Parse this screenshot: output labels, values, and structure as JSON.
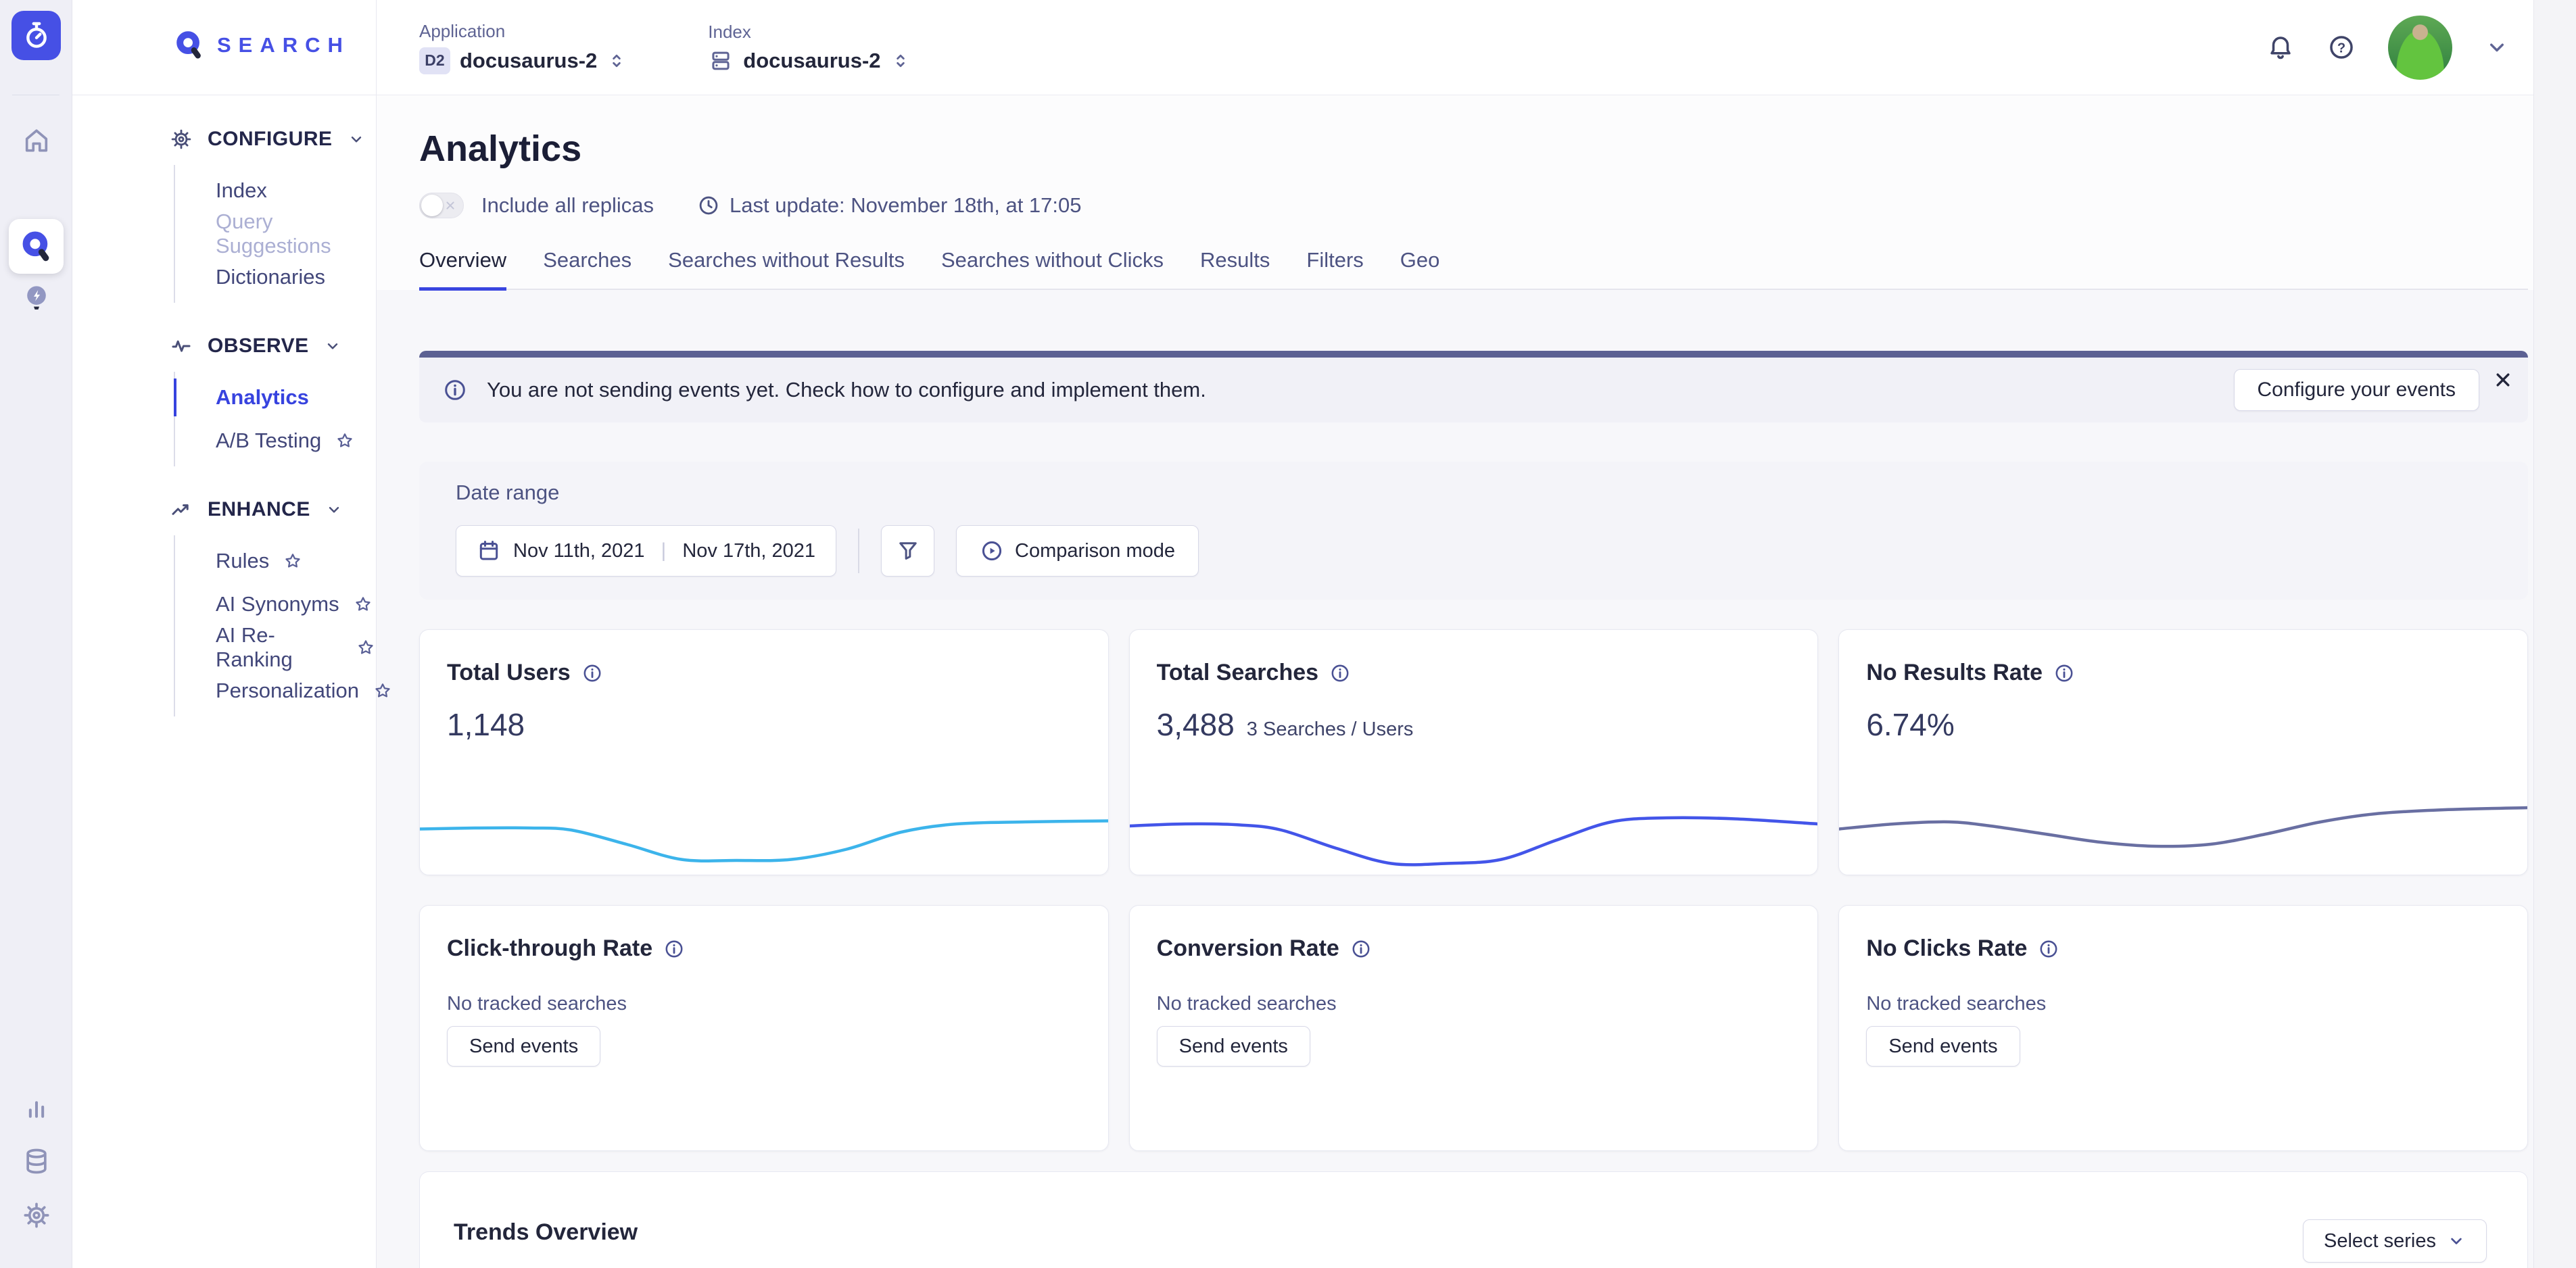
{
  "rail": {
    "app_icon": "timer-icon",
    "home_icon": "home-icon",
    "active_icon": "search-product-icon",
    "recommend_icon": "lightbulb-bolt-icon",
    "bottom_icons": [
      "bar-chart-icon",
      "database-icon",
      "gear-icon"
    ]
  },
  "sidebar": {
    "logo_text": "SEARCH",
    "sections": [
      {
        "label": "CONFIGURE",
        "icon": "gear-icon",
        "items": [
          {
            "label": "Index"
          },
          {
            "label": "Query Suggestions"
          },
          {
            "label": "Dictionaries"
          }
        ]
      },
      {
        "label": "OBSERVE",
        "icon": "pulse-icon",
        "items": [
          {
            "label": "Analytics"
          },
          {
            "label": "A/B Testing"
          }
        ]
      },
      {
        "label": "ENHANCE",
        "icon": "trend-up-icon",
        "items": [
          {
            "label": "Rules"
          },
          {
            "label": "AI Synonyms"
          },
          {
            "label": "AI Re-Ranking"
          },
          {
            "label": "Personalization"
          }
        ]
      }
    ]
  },
  "topbar": {
    "application": {
      "label": "Application",
      "badge": "D2",
      "value": "docusaurus-2"
    },
    "index": {
      "label": "Index",
      "value": "docusaurus-2"
    }
  },
  "page": {
    "title": "Analytics",
    "toggle_label": "Include all replicas",
    "last_update": "Last update: November 18th, at 17:05",
    "tabs": [
      "Overview",
      "Searches",
      "Searches without Results",
      "Searches without Clicks",
      "Results",
      "Filters",
      "Geo"
    ],
    "active_tab": "Overview"
  },
  "banner": {
    "text": "You are not sending events yet. Check how to configure and implement them.",
    "button_label": "Configure your events"
  },
  "date_range": {
    "label": "Date range",
    "start": "Nov 11th, 2021",
    "end": "Nov 17th, 2021",
    "comparison_label": "Comparison mode"
  },
  "stats": [
    {
      "title": "Total Users",
      "value": "1,148",
      "sub": ""
    },
    {
      "title": "Total Searches",
      "value": "3,488",
      "sub": "3 Searches / Users"
    },
    {
      "title": "No Results Rate",
      "value": "6.74%",
      "sub": ""
    }
  ],
  "empty_stats": [
    {
      "title": "Click-through Rate",
      "message": "No tracked searches",
      "button_label": "Send events"
    },
    {
      "title": "Conversion Rate",
      "message": "No tracked searches",
      "button_label": "Send events"
    },
    {
      "title": "No Clicks Rate",
      "message": "No tracked searches",
      "button_label": "Send events"
    }
  ],
  "trends": {
    "title": "Trends Overview",
    "select_label": "Select series"
  },
  "colors": {
    "accent": "#4650E5",
    "banner_accent": "#5C6193",
    "spark_users": "#3CB4EB",
    "spark_searches": "#4355E9",
    "spark_no_results": "#696FA2"
  },
  "chart_data": [
    {
      "type": "line",
      "name": "total-users-sparkline",
      "color": "#3CB4EB",
      "x": [
        0,
        8,
        16,
        22,
        30,
        38,
        46,
        54,
        62,
        70,
        78,
        88,
        100
      ],
      "values": [
        45,
        46,
        46,
        44,
        30,
        15,
        14,
        15,
        25,
        42,
        50,
        52,
        53
      ]
    },
    {
      "type": "line",
      "name": "total-searches-sparkline",
      "color": "#4355E9",
      "x": [
        0,
        8,
        16,
        22,
        30,
        38,
        46,
        54,
        62,
        70,
        78,
        88,
        100
      ],
      "values": [
        48,
        50,
        49,
        44,
        26,
        11,
        11,
        15,
        34,
        52,
        56,
        55,
        50
      ]
    },
    {
      "type": "line",
      "name": "no-results-rate-sparkline",
      "color": "#696FA2",
      "x": [
        0,
        8,
        16,
        22,
        30,
        38,
        46,
        54,
        62,
        70,
        78,
        88,
        100
      ],
      "values": [
        45,
        50,
        52,
        48,
        40,
        32,
        28,
        30,
        40,
        52,
        60,
        64,
        66
      ]
    }
  ]
}
